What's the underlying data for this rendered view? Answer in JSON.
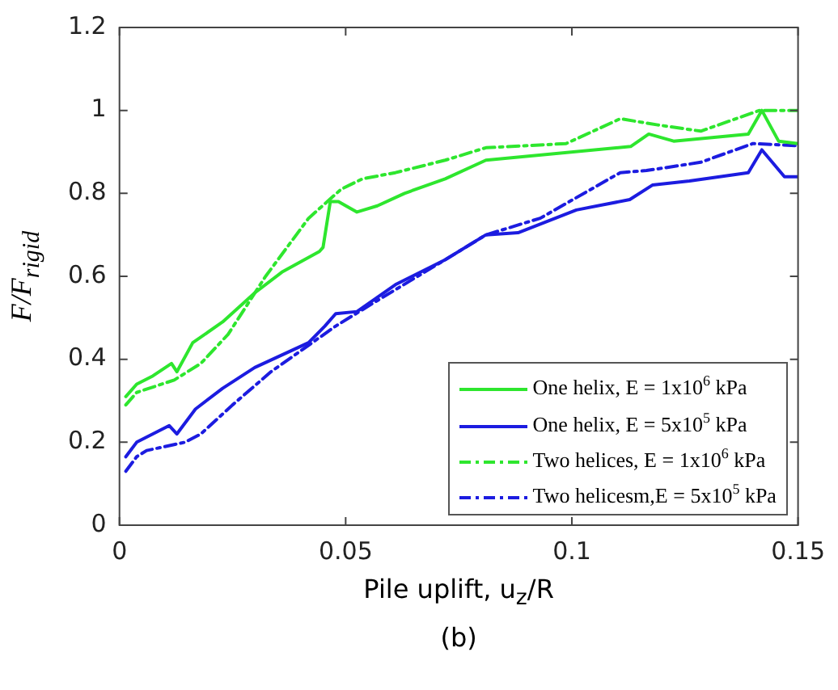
{
  "chart_data": {
    "type": "line",
    "xlabel": "Pile uplift, u$_{z}$/R",
    "ylabel": "F/F$_{rigid}$",
    "annotations": [
      "(b)"
    ],
    "xlim": [
      0,
      0.15
    ],
    "xticks": [
      0,
      0.05,
      0.1,
      0.15
    ],
    "ylim": [
      0,
      1.2
    ],
    "yticks": [
      0,
      0.2,
      0.4,
      0.6,
      0.8,
      1,
      1.2
    ],
    "grid": false,
    "legend": "bottom right",
    "marker": "none",
    "series": [
      {
        "name": "One helix, E = 1x10$^{6}$ kPa",
        "color": "#2ee62e",
        "line_style": "solid",
        "x": [
          0.0014,
          0.0038,
          0.0074,
          0.0115,
          0.0127,
          0.0162,
          0.0228,
          0.0299,
          0.0359,
          0.0442,
          0.045,
          0.0466,
          0.0484,
          0.0525,
          0.057,
          0.063,
          0.072,
          0.081,
          0.113,
          0.117,
          0.1225,
          0.139,
          0.142,
          0.1457,
          0.15
        ],
        "values": [
          0.31,
          0.34,
          0.36,
          0.39,
          0.37,
          0.44,
          0.49,
          0.56,
          0.61,
          0.66,
          0.67,
          0.78,
          0.78,
          0.755,
          0.77,
          0.8,
          0.835,
          0.88,
          0.913,
          0.943,
          0.926,
          0.943,
          1.0,
          0.926,
          0.92
        ]
      },
      {
        "name": "One helix, E = 5x10$^{5}$ kPa",
        "color": "#1c1ce0",
        "line_style": "solid",
        "x": [
          0.0014,
          0.0038,
          0.011,
          0.0127,
          0.0168,
          0.0228,
          0.0299,
          0.0418,
          0.0454,
          0.0478,
          0.0525,
          0.061,
          0.072,
          0.081,
          0.0881,
          0.101,
          0.1128,
          0.1178,
          0.126,
          0.139,
          0.142,
          0.147,
          0.15
        ],
        "values": [
          0.165,
          0.2,
          0.24,
          0.22,
          0.28,
          0.33,
          0.38,
          0.44,
          0.48,
          0.51,
          0.515,
          0.58,
          0.64,
          0.7,
          0.705,
          0.76,
          0.785,
          0.82,
          0.83,
          0.85,
          0.905,
          0.84,
          0.84
        ]
      },
      {
        "name": "Two helices, E = 1x10$^{6}$ kPa",
        "color": "#2ee62e",
        "line_style": "dashed",
        "x": [
          0.0014,
          0.0038,
          0.0121,
          0.018,
          0.024,
          0.0323,
          0.0418,
          0.049,
          0.0537,
          0.061,
          0.072,
          0.081,
          0.0987,
          0.1107,
          0.119,
          0.1285,
          0.1415,
          0.15
        ],
        "values": [
          0.29,
          0.32,
          0.35,
          0.39,
          0.46,
          0.6,
          0.74,
          0.81,
          0.835,
          0.85,
          0.88,
          0.91,
          0.92,
          0.98,
          0.965,
          0.95,
          1.0,
          1.0
        ]
      },
      {
        "name": "Two helicesm,E = 5x10$^{5}$ kPa",
        "color": "#1c1ce0",
        "line_style": "dashed",
        "x": [
          0.0014,
          0.0038,
          0.006,
          0.0145,
          0.018,
          0.025,
          0.0335,
          0.0478,
          0.056,
          0.072,
          0.081,
          0.093,
          0.1107,
          0.1165,
          0.1285,
          0.14,
          0.15
        ],
        "values": [
          0.13,
          0.165,
          0.18,
          0.2,
          0.22,
          0.29,
          0.37,
          0.48,
          0.535,
          0.64,
          0.7,
          0.74,
          0.85,
          0.855,
          0.875,
          0.92,
          0.915
        ]
      }
    ]
  }
}
